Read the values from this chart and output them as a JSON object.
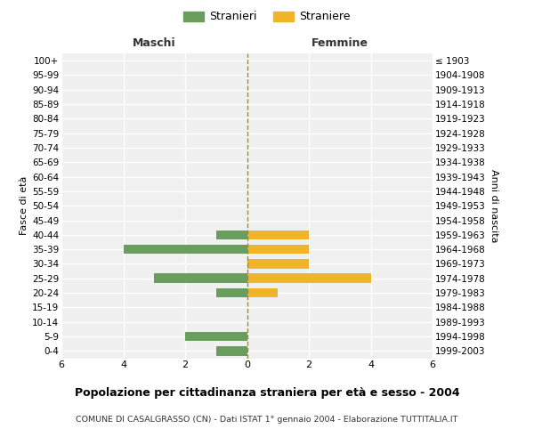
{
  "age_groups": [
    "0-4",
    "5-9",
    "10-14",
    "15-19",
    "20-24",
    "25-29",
    "30-34",
    "35-39",
    "40-44",
    "45-49",
    "50-54",
    "55-59",
    "60-64",
    "65-69",
    "70-74",
    "75-79",
    "80-84",
    "85-89",
    "90-94",
    "95-99",
    "100+"
  ],
  "birth_years": [
    "1999-2003",
    "1994-1998",
    "1989-1993",
    "1984-1988",
    "1979-1983",
    "1974-1978",
    "1969-1973",
    "1964-1968",
    "1959-1963",
    "1954-1958",
    "1949-1953",
    "1944-1948",
    "1939-1943",
    "1934-1938",
    "1929-1933",
    "1924-1928",
    "1919-1923",
    "1914-1918",
    "1909-1913",
    "1904-1908",
    "≤ 1903"
  ],
  "maschi": [
    1,
    2,
    0,
    0,
    1,
    3,
    0,
    4,
    1,
    0,
    0,
    0,
    0,
    0,
    0,
    0,
    0,
    0,
    0,
    0,
    0
  ],
  "femmine": [
    0,
    0,
    0,
    0,
    1,
    4,
    2,
    2,
    2,
    0,
    0,
    0,
    0,
    0,
    0,
    0,
    0,
    0,
    0,
    0,
    0
  ],
  "color_maschi": "#6a9e5e",
  "color_femmine": "#f0b429",
  "bg_color": "#f0f0f0",
  "grid_color": "#ffffff",
  "title": "Popolazione per cittadinanza straniera per età e sesso - 2004",
  "subtitle": "COMUNE DI CASALGRASSO (CN) - Dati ISTAT 1° gennaio 2004 - Elaborazione TUTTITALIA.IT",
  "ylabel_left": "Fasce di età",
  "ylabel_right": "Anni di nascita",
  "label_maschi": "Maschi",
  "label_femmine": "Femmine",
  "legend_maschi": "Stranieri",
  "legend_femmine": "Straniere",
  "xlim": 6
}
